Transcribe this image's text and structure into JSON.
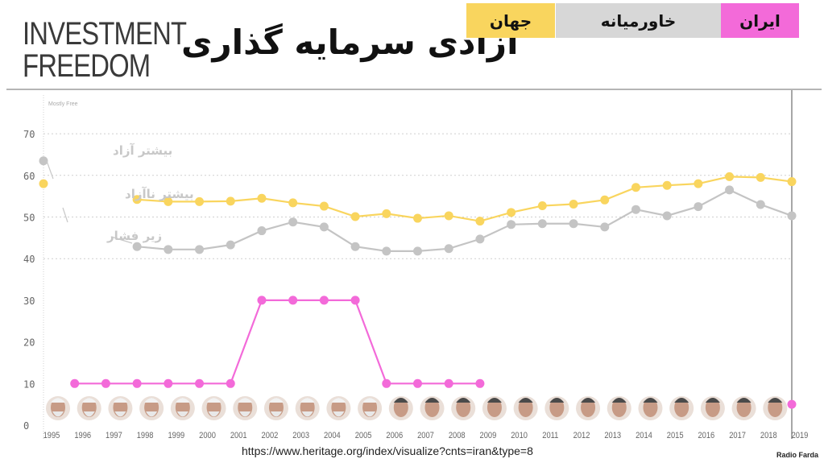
{
  "brand": {
    "line1": "INVESTMENT",
    "line2": "FREEDOM"
  },
  "title_fa": "آزادی سرمایه گذاری",
  "tabs": [
    {
      "label": "جهان",
      "color": "#f9d55e"
    },
    {
      "label": "خاورمیانه",
      "color": "#d7d7d7"
    },
    {
      "label": "ایران",
      "color": "#f36ad9"
    }
  ],
  "colors": {
    "world": "#f9d55e",
    "middle_east": "#c4c4c4",
    "iran": "#f36ad9",
    "gridline": "#cfcfcf",
    "axis_text": "#666666"
  },
  "chart_data": {
    "type": "line",
    "x": [
      1995,
      1996,
      1997,
      1998,
      1999,
      2000,
      2001,
      2002,
      2003,
      2004,
      2005,
      2006,
      2007,
      2008,
      2009,
      2010,
      2011,
      2012,
      2013,
      2014,
      2015,
      2016,
      2017,
      2018,
      2019
    ],
    "xticklabels": [
      "1995",
      "1996",
      "1997",
      "1998",
      "1999",
      "2000",
      "2001",
      "2002",
      "2003",
      "2004",
      "2005",
      "2006",
      "2007",
      "2008",
      "2009",
      "2010",
      "2011",
      "2012",
      "2013",
      "2014",
      "2015",
      "2016",
      "2017",
      "2018",
      "2019"
    ],
    "yticks": [
      0,
      10,
      20,
      30,
      40,
      50,
      60,
      70
    ],
    "ylim": [
      0,
      75
    ],
    "gridlines_at": [
      40,
      50,
      60,
      70
    ],
    "band_label": "Mostly Free",
    "series": [
      {
        "key": "world",
        "color": "#f9d55e",
        "values": [
          58,
          null,
          null,
          54.2,
          53.7,
          53.7,
          53.8,
          54.5,
          53.4,
          52.6,
          50.1,
          50.8,
          49.7,
          50.3,
          49,
          51.1,
          52.7,
          53.1,
          54.1,
          57.1,
          57.6,
          58,
          59.7,
          59.5,
          58.5
        ]
      },
      {
        "key": "middle_east",
        "color": "#c4c4c4",
        "values": [
          63.5,
          null,
          null,
          42.9,
          42.2,
          42.2,
          43.3,
          46.7,
          48.8,
          47.6,
          42.9,
          41.8,
          41.8,
          42.4,
          44.7,
          48.2,
          48.4,
          48.4,
          47.6,
          51.8,
          50.3,
          52.5,
          56.5,
          53,
          50.3
        ]
      },
      {
        "key": "iran",
        "color": "#f36ad9",
        "values": [
          null,
          10,
          10,
          10,
          10,
          10,
          10,
          30,
          30,
          30,
          30,
          10,
          10,
          10,
          10,
          null,
          null,
          null,
          null,
          null,
          null,
          null,
          null,
          null,
          5
        ]
      }
    ],
    "annotations_fa": [
      "بیشتر آزاد",
      "بیشتر ناآزاد",
      "زیر فشار"
    ]
  },
  "source_url": "https://www.heritage.org/index/visualize?cnts=iran&type=8",
  "credit": "Radio Farda"
}
